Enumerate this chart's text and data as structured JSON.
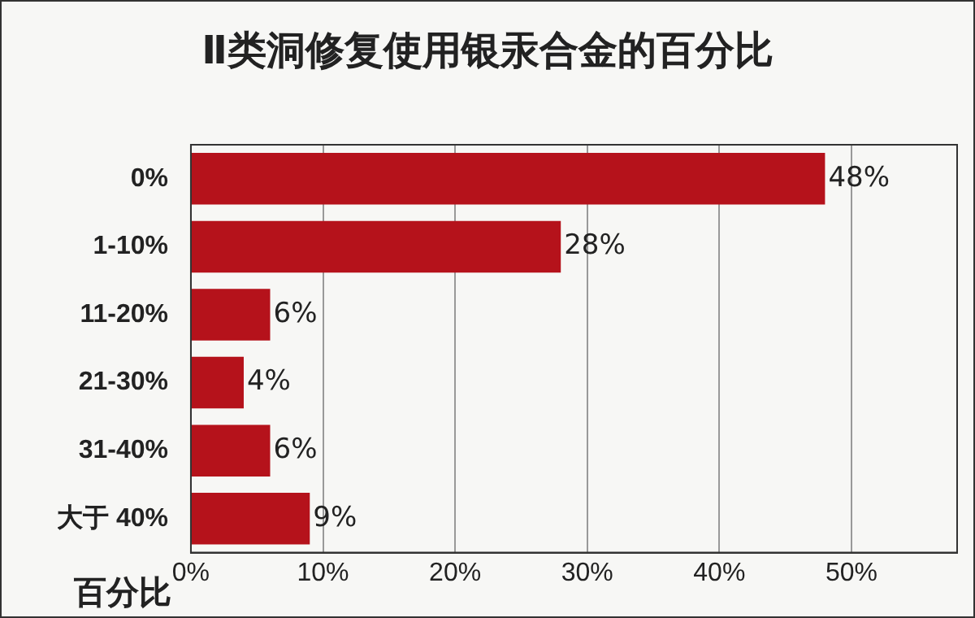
{
  "chart_data": {
    "type": "bar",
    "orientation": "horizontal",
    "title": "Ⅱ类洞修复使用银汞合金的百分比",
    "xlabel": "百分比",
    "categories": [
      "0%",
      "1-10%",
      "11-20%",
      "21-30%",
      "31-40%",
      "大于 40%"
    ],
    "values": [
      48,
      28,
      6,
      4,
      6,
      9
    ],
    "color": "#b5121b",
    "value_labels": [
      "48%",
      "28%",
      "6%",
      "4%",
      "6%",
      "9%"
    ],
    "xlim": [
      0,
      58
    ],
    "xticks": [
      {
        "value": 0,
        "label": "0%"
      },
      {
        "value": 10,
        "label": "10%"
      },
      {
        "value": 20,
        "label": "20%"
      },
      {
        "value": 30,
        "label": "30%"
      },
      {
        "value": 40,
        "label": "40%"
      },
      {
        "value": 50,
        "label": "50%"
      }
    ],
    "grid": "x",
    "legend": false
  }
}
